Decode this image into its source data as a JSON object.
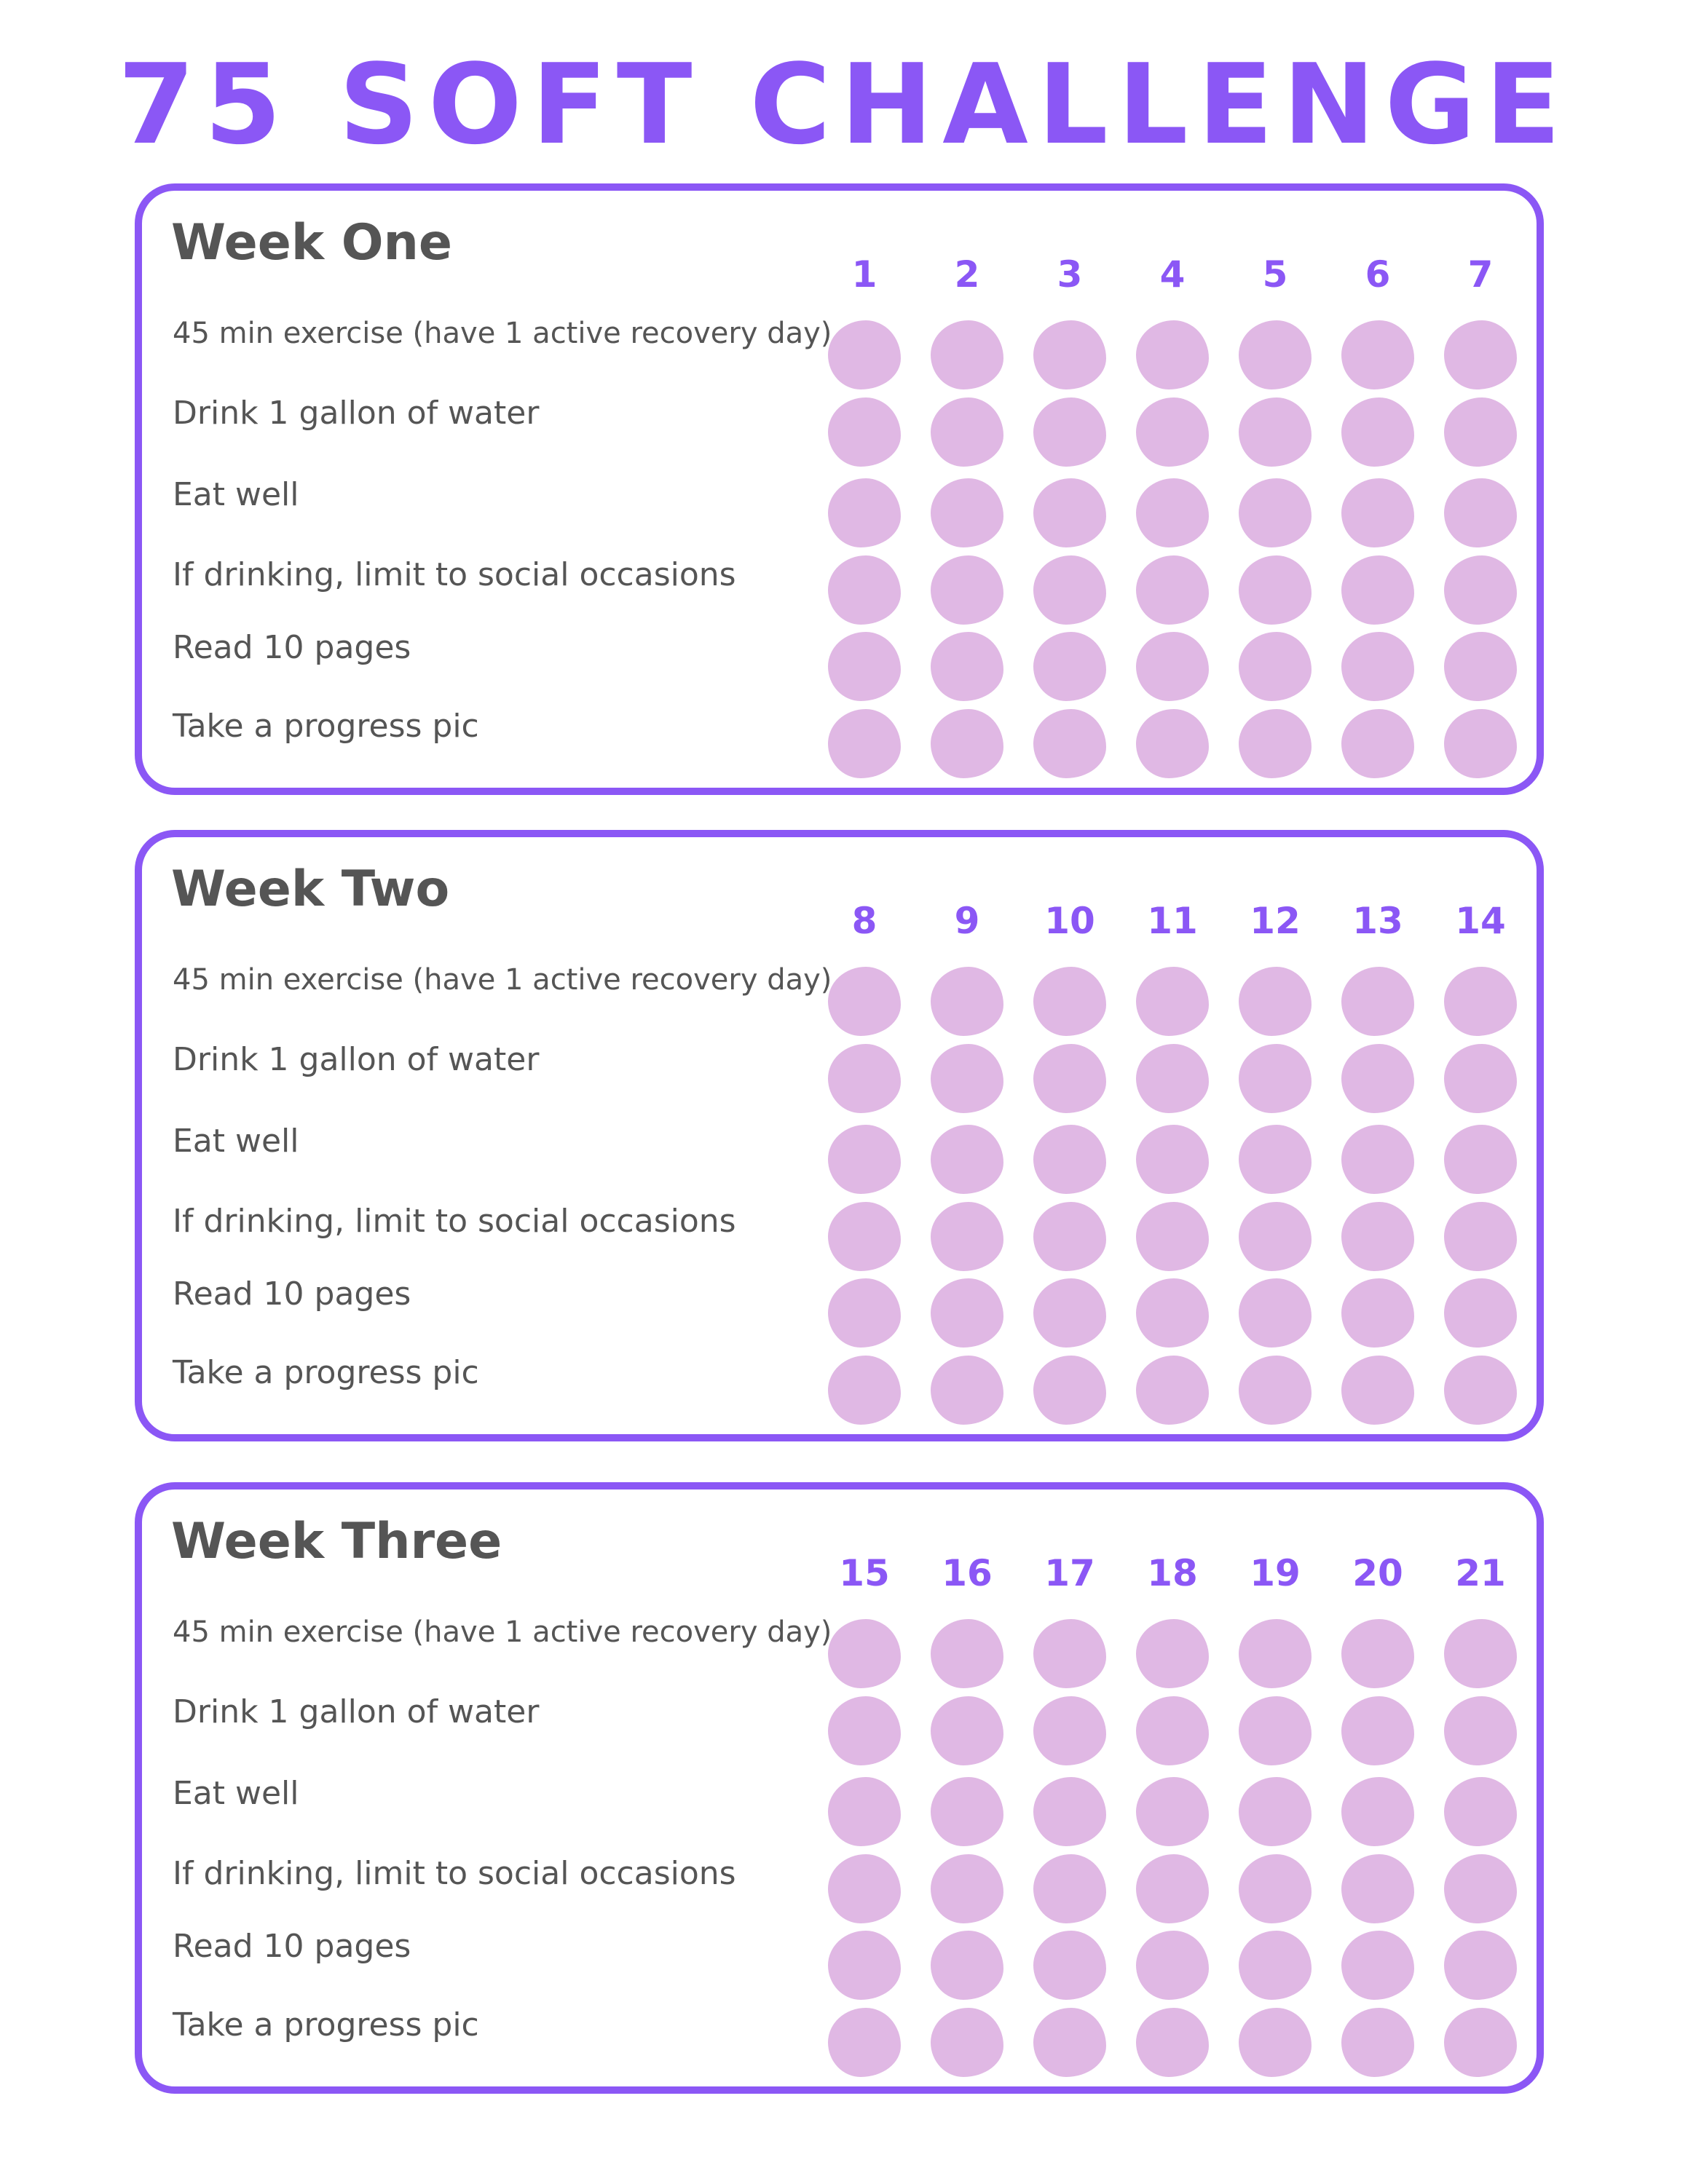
{
  "title": "75 SOFT CHALLENGE",
  "colors": {
    "accent": "#8b57f5",
    "dot": "#e0b8e4",
    "text": "#555555"
  },
  "tasks": [
    "45 min exercise  (have 1 active recovery day)",
    "Drink 1 gallon of water",
    "Eat well",
    "If drinking, limit to social occasions",
    "Read 10 pages",
    "Take a progress pic"
  ],
  "weeks": [
    {
      "title": "Week One",
      "days": [
        "1",
        "2",
        "3",
        "4",
        "5",
        "6",
        "7"
      ]
    },
    {
      "title": "Week Two",
      "days": [
        "8",
        "9",
        "10",
        "11",
        "12",
        "13",
        "14"
      ]
    },
    {
      "title": "Week Three",
      "days": [
        "15",
        "16",
        "17",
        "18",
        "19",
        "20",
        "21"
      ]
    }
  ]
}
